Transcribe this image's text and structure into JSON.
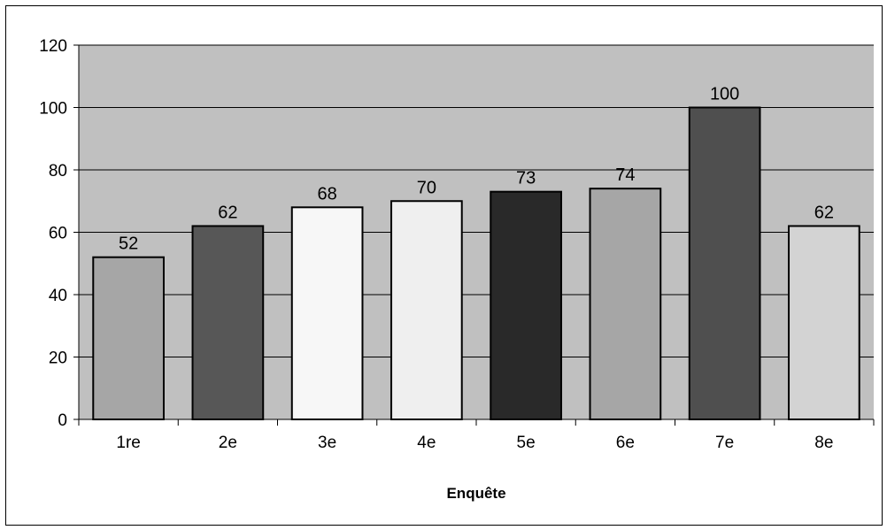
{
  "chart_data": {
    "type": "bar",
    "title": "",
    "xlabel": "Enquête",
    "ylabel": "",
    "categories": [
      "1re",
      "2e",
      "3e",
      "4e",
      "5e",
      "6e",
      "7e",
      "8e"
    ],
    "values": [
      52,
      62,
      68,
      70,
      73,
      74,
      100,
      62
    ],
    "data_labels": [
      "52",
      "62",
      "68",
      "70",
      "73",
      "74",
      "100",
      "62"
    ],
    "ylim": [
      0,
      120
    ],
    "yticks": [
      0,
      20,
      40,
      60,
      80,
      100,
      120
    ],
    "ytick_labels": [
      "0",
      "20",
      "40",
      "60",
      "80",
      "100",
      "120"
    ],
    "grid": true,
    "legend": "none",
    "plot_background": "#c0c0c0",
    "bar_colors": [
      "#a6a6a6",
      "#575757",
      "#f7f7f7",
      "#efefef",
      "#292929",
      "#a6a6a6",
      "#4f4f4f",
      "#d3d3d3"
    ],
    "bar_outline": "#000000"
  }
}
